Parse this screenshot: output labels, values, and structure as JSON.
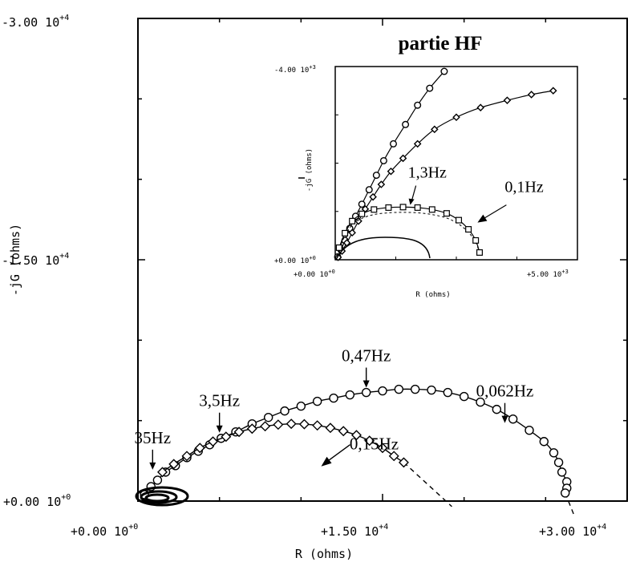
{
  "chart_data": [
    {
      "type": "scatter",
      "title": "",
      "xlabel": "R (ohms)",
      "ylabel": "-jG (ohms)",
      "xlim": [
        0,
        30000
      ],
      "ylim": [
        0,
        30000
      ],
      "x_ticks": [
        {
          "value": 0,
          "mantissa": "+0.00 10",
          "exp": "+0"
        },
        {
          "value": 15000,
          "mantissa": "+1.50 10",
          "exp": "+4"
        },
        {
          "value": 30000,
          "mantissa": "+3.00 10",
          "exp": "+4"
        }
      ],
      "y_ticks": [
        {
          "value": 0,
          "mantissa": "+0.00 10",
          "exp": "+0"
        },
        {
          "value": 15000,
          "mantissa": "-1.50 10",
          "exp": "+4"
        },
        {
          "value": 30000,
          "mantissa": "-3.00 10",
          "exp": "+4"
        }
      ],
      "series": [
        {
          "marker": "circle",
          "x": [
            400,
            800,
            1200,
            1700,
            2300,
            3000,
            3700,
            4400,
            5100,
            6000,
            7000,
            8000,
            9000,
            10000,
            11000,
            12000,
            13000,
            14000,
            15000,
            16000,
            17000,
            18000,
            19000,
            20000,
            21000,
            22000,
            23000,
            24000,
            24900,
            25500,
            25800,
            26000,
            26300,
            26300,
            26200
          ],
          "y": [
            400,
            900,
            1300,
            1800,
            2200,
            2700,
            3100,
            3500,
            3900,
            4300,
            4800,
            5200,
            5600,
            5900,
            6200,
            6400,
            6600,
            6750,
            6850,
            6950,
            6950,
            6900,
            6750,
            6500,
            6150,
            5700,
            5100,
            4400,
            3700,
            3000,
            2400,
            1800,
            1200,
            800,
            500
          ]
        },
        {
          "marker": "diamond",
          "x": [
            1500,
            2200,
            3000,
            3800,
            4600,
            5400,
            6200,
            7000,
            7800,
            8600,
            9400,
            10200,
            11000,
            11800,
            12600,
            13400,
            14200,
            15000,
            15700,
            16300
          ],
          "y": [
            1800,
            2300,
            2800,
            3300,
            3700,
            4000,
            4300,
            4500,
            4650,
            4750,
            4800,
            4780,
            4700,
            4550,
            4350,
            4100,
            3750,
            3300,
            2800,
            2400
          ]
        }
      ],
      "annotations": [
        {
          "text": "35Hz",
          "x": 900,
          "y": 1800
        },
        {
          "text": "3,5Hz",
          "x": 5000,
          "y": 4100
        },
        {
          "text": "0,47Hz",
          "x": 14000,
          "y": 6900
        },
        {
          "text": "0,15Hz",
          "x": 13500,
          "y": 4300
        },
        {
          "text": "0,062Hz",
          "x": 22500,
          "y": 4700
        }
      ]
    },
    {
      "type": "scatter",
      "title": "partie HF",
      "xlabel": "R (ohms)",
      "ylabel": "-jG (ohms)",
      "xlim": [
        0,
        5000
      ],
      "ylim": [
        0,
        4000
      ],
      "x_ticks": [
        {
          "value": 0,
          "mantissa": "+0.00 10",
          "exp": "+0"
        },
        {
          "value": 5000,
          "mantissa": "+5.00 10",
          "exp": "+3"
        }
      ],
      "y_ticks": [
        {
          "value": 0,
          "mantissa": "+0.00 10",
          "exp": "+0"
        },
        {
          "value": 4000,
          "mantissa": "-4.00 10",
          "exp": "+3"
        }
      ],
      "series": [
        {
          "marker": "circle",
          "x": [
            50,
            120,
            200,
            300,
            420,
            550,
            700,
            850,
            1000,
            1200,
            1450,
            1700,
            1950,
            2250
          ],
          "y": [
            60,
            200,
            400,
            650,
            900,
            1150,
            1450,
            1750,
            2050,
            2400,
            2800,
            3200,
            3550,
            3900
          ]
        },
        {
          "marker": "diamond",
          "x": [
            60,
            140,
            240,
            350,
            480,
            620,
            780,
            950,
            1150,
            1400,
            1700,
            2050,
            2500,
            3000,
            3550,
            4050,
            4500
          ],
          "y": [
            50,
            180,
            350,
            560,
            800,
            1050,
            1300,
            1560,
            1830,
            2100,
            2400,
            2700,
            2950,
            3150,
            3300,
            3420,
            3500
          ]
        },
        {
          "marker": "square",
          "x": [
            80,
            200,
            350,
            550,
            800,
            1100,
            1400,
            1700,
            2000,
            2300,
            2550,
            2750,
            2900,
            2980
          ],
          "y": [
            250,
            550,
            800,
            950,
            1040,
            1080,
            1090,
            1080,
            1040,
            960,
            820,
            630,
            400,
            150
          ]
        }
      ],
      "annotations": [
        {
          "text": "1,3Hz",
          "x": 1500,
          "y": 1700
        },
        {
          "text": "0,1Hz",
          "x": 3500,
          "y": 1400
        }
      ]
    }
  ]
}
